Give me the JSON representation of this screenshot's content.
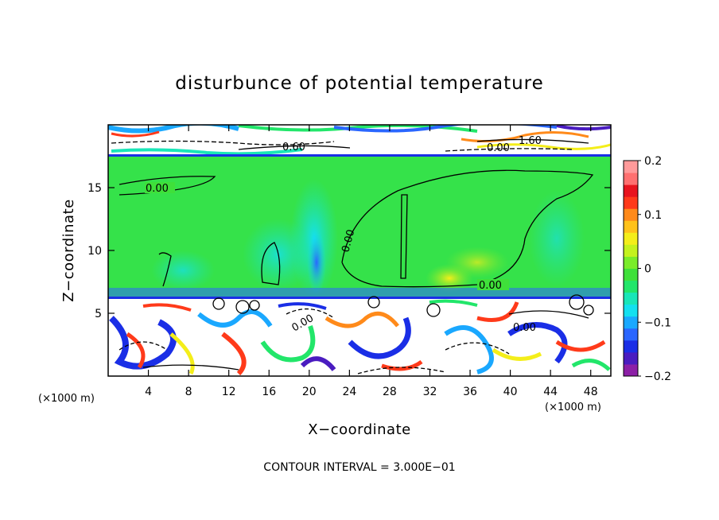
{
  "chart_data": {
    "type": "heatmap",
    "title": "disturbunce of potential temperature",
    "xlabel": "X−coordinate",
    "ylabel": "Z−coordinate",
    "x_unit_label": "(×1000 m)",
    "x_unit_label_right": "(×1000 m)",
    "xlim": [
      0,
      50
    ],
    "ylim": [
      0,
      20
    ],
    "x_ticks": [
      4,
      8,
      12,
      16,
      20,
      24,
      28,
      32,
      36,
      40,
      44,
      48
    ],
    "y_ticks": [
      5,
      10,
      15
    ],
    "colorbar": {
      "range": [
        -0.2,
        0.2
      ],
      "ticks": [
        "0.2",
        "0.1",
        "0",
        "−0.1",
        "−0.2"
      ],
      "tick_values": [
        0.2,
        0.1,
        0,
        -0.1,
        -0.2
      ],
      "colors": [
        "#8c1fa6",
        "#4a1cc0",
        "#1a2ee6",
        "#2a66ff",
        "#1aa8ff",
        "#14e0f0",
        "#19e6b8",
        "#22e66a",
        "#3fe03a",
        "#7aec2a",
        "#c4f21e",
        "#f4ee1a",
        "#ffc21a",
        "#ff8a1a",
        "#ff3a1a",
        "#e8141e",
        "#ff7070",
        "#ff9a9a"
      ]
    },
    "contour_interval_text": "CONTOUR INTERVAL = 3.000E−01",
    "contour_labels": [
      "0.00",
      "0.00",
      "0.00",
      "0.00",
      "0.00",
      "0.00",
      "0.60",
      "1.60"
    ],
    "layers": [
      {
        "z_range": [
          17.3,
          20
        ],
        "description_value": "strong +/- disturbances"
      },
      {
        "z_range": [
          6.3,
          17.3
        ],
        "description_value": "near zero"
      },
      {
        "z_range": [
          0,
          6.3
        ],
        "description_value": "strong +/- disturbances"
      }
    ]
  }
}
